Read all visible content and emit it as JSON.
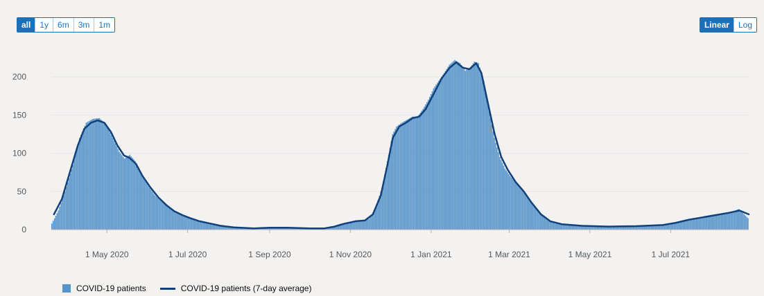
{
  "range_buttons": [
    {
      "label": "all",
      "active": true
    },
    {
      "label": "1y",
      "active": false
    },
    {
      "label": "6m",
      "active": false
    },
    {
      "label": "3m",
      "active": false
    },
    {
      "label": "1m",
      "active": false
    }
  ],
  "scale_buttons": [
    {
      "label": "Linear",
      "active": true
    },
    {
      "label": "Log",
      "active": false
    }
  ],
  "legend": {
    "bars_label": "COVID-19 patients",
    "line_label": "COVID-19 patients (7-day average)"
  },
  "colors": {
    "bars": "#5694ca",
    "line": "#12407a",
    "grid": "#e6e6e6",
    "axis_text": "#505a5f"
  },
  "chart_data": {
    "type": "bar",
    "title": "",
    "xlabel": "",
    "ylabel": "",
    "ylim": [
      0,
      230
    ],
    "yticks": [
      0,
      50,
      100,
      150,
      200
    ],
    "x_ticks": [
      "1 May 2020",
      "1 Jul 2020",
      "1 Sep 2020",
      "1 Nov 2020",
      "1 Jan 2021",
      "1 Mar 2021",
      "1 May 2021",
      "1 Jul 2021"
    ],
    "x_tick_dates": [
      "2020-05-01",
      "2020-07-01",
      "2020-09-01",
      "2020-11-01",
      "2021-01-01",
      "2021-03-01",
      "2021-05-01",
      "2021-07-01"
    ],
    "x_range": [
      "2020-03-20",
      "2021-08-29"
    ],
    "grid": true,
    "legend_position": "bottom-left",
    "series": [
      {
        "name": "COVID-19 patients",
        "kind": "bar",
        "points": [
          [
            "2020-03-20",
            8
          ],
          [
            "2020-03-25",
            25
          ],
          [
            "2020-03-30",
            50
          ],
          [
            "2020-04-05",
            85
          ],
          [
            "2020-04-10",
            120
          ],
          [
            "2020-04-15",
            140
          ],
          [
            "2020-04-20",
            145
          ],
          [
            "2020-04-25",
            146
          ],
          [
            "2020-04-30",
            138
          ],
          [
            "2020-05-05",
            120
          ],
          [
            "2020-05-10",
            102
          ],
          [
            "2020-05-14",
            93
          ],
          [
            "2020-05-18",
            98
          ],
          [
            "2020-05-22",
            90
          ],
          [
            "2020-05-27",
            72
          ],
          [
            "2020-06-01",
            57
          ],
          [
            "2020-06-06",
            45
          ],
          [
            "2020-06-12",
            35
          ],
          [
            "2020-06-17",
            28
          ],
          [
            "2020-06-22",
            22
          ],
          [
            "2020-06-27",
            18
          ],
          [
            "2020-07-01",
            17
          ],
          [
            "2020-07-06",
            14
          ],
          [
            "2020-07-11",
            10
          ],
          [
            "2020-07-16",
            9
          ],
          [
            "2020-07-21",
            8
          ],
          [
            "2020-07-26",
            6
          ],
          [
            "2020-08-01",
            4
          ],
          [
            "2020-08-10",
            2
          ],
          [
            "2020-08-20",
            1.5
          ],
          [
            "2020-08-26",
            2
          ],
          [
            "2020-09-01",
            3
          ],
          [
            "2020-09-10",
            3
          ],
          [
            "2020-09-20",
            2.5
          ],
          [
            "2020-10-01",
            1.5
          ],
          [
            "2020-10-10",
            1
          ],
          [
            "2020-10-15",
            2
          ],
          [
            "2020-10-20",
            5
          ],
          [
            "2020-10-25",
            8
          ],
          [
            "2020-10-31",
            10
          ],
          [
            "2020-11-05",
            12
          ],
          [
            "2020-11-10",
            12
          ],
          [
            "2020-11-15",
            14
          ],
          [
            "2020-11-20",
            28
          ],
          [
            "2020-11-25",
            55
          ],
          [
            "2020-11-30",
            98
          ],
          [
            "2020-12-03",
            125
          ],
          [
            "2020-12-06",
            135
          ],
          [
            "2020-12-10",
            140
          ],
          [
            "2020-12-15",
            145
          ],
          [
            "2020-12-18",
            148
          ],
          [
            "2020-12-22",
            148
          ],
          [
            "2020-12-26",
            158
          ],
          [
            "2020-12-30",
            170
          ],
          [
            "2021-01-03",
            185
          ],
          [
            "2021-01-07",
            195
          ],
          [
            "2021-01-11",
            205
          ],
          [
            "2021-01-15",
            216
          ],
          [
            "2021-01-19",
            222
          ],
          [
            "2021-01-23",
            218
          ],
          [
            "2021-01-27",
            208
          ],
          [
            "2021-01-31",
            213
          ],
          [
            "2021-02-03",
            220
          ],
          [
            "2021-02-06",
            218
          ],
          [
            "2021-02-10",
            195
          ],
          [
            "2021-02-14",
            155
          ],
          [
            "2021-02-18",
            120
          ],
          [
            "2021-02-22",
            95
          ],
          [
            "2021-02-26",
            80
          ],
          [
            "2021-03-02",
            70
          ],
          [
            "2021-03-06",
            62
          ],
          [
            "2021-03-10",
            55
          ],
          [
            "2021-03-15",
            42
          ],
          [
            "2021-03-20",
            30
          ],
          [
            "2021-03-25",
            20
          ],
          [
            "2021-03-30",
            14
          ],
          [
            "2021-04-05",
            8
          ],
          [
            "2021-04-12",
            6
          ],
          [
            "2021-04-20",
            5
          ],
          [
            "2021-05-01",
            5
          ],
          [
            "2021-05-15",
            4
          ],
          [
            "2021-06-01",
            4
          ],
          [
            "2021-06-10",
            5
          ],
          [
            "2021-06-20",
            6
          ],
          [
            "2021-06-30",
            7
          ],
          [
            "2021-07-05",
            9
          ],
          [
            "2021-07-10",
            12
          ],
          [
            "2021-07-15",
            14
          ],
          [
            "2021-07-20",
            14
          ],
          [
            "2021-07-25",
            16
          ],
          [
            "2021-07-30",
            18
          ],
          [
            "2021-08-04",
            19
          ],
          [
            "2021-08-09",
            21
          ],
          [
            "2021-08-14",
            22
          ],
          [
            "2021-08-18",
            24
          ],
          [
            "2021-08-22",
            27
          ],
          [
            "2021-08-25",
            22
          ],
          [
            "2021-08-29",
            15
          ]
        ]
      },
      {
        "name": "COVID-19 patients (7-day average)",
        "kind": "line",
        "points": [
          [
            "2020-03-22",
            20
          ],
          [
            "2020-03-28",
            40
          ],
          [
            "2020-04-03",
            75
          ],
          [
            "2020-04-09",
            110
          ],
          [
            "2020-04-14",
            132
          ],
          [
            "2020-04-19",
            140
          ],
          [
            "2020-04-24",
            143
          ],
          [
            "2020-04-29",
            140
          ],
          [
            "2020-05-04",
            128
          ],
          [
            "2020-05-09",
            110
          ],
          [
            "2020-05-14",
            97
          ],
          [
            "2020-05-18",
            94
          ],
          [
            "2020-05-23",
            86
          ],
          [
            "2020-05-28",
            70
          ],
          [
            "2020-06-03",
            55
          ],
          [
            "2020-06-09",
            42
          ],
          [
            "2020-06-15",
            32
          ],
          [
            "2020-06-21",
            24
          ],
          [
            "2020-06-27",
            19
          ],
          [
            "2020-07-03",
            15
          ],
          [
            "2020-07-10",
            11
          ],
          [
            "2020-07-18",
            8
          ],
          [
            "2020-07-26",
            5
          ],
          [
            "2020-08-05",
            3
          ],
          [
            "2020-08-20",
            1.5
          ],
          [
            "2020-09-01",
            2.5
          ],
          [
            "2020-09-15",
            2.5
          ],
          [
            "2020-10-01",
            1.5
          ],
          [
            "2020-10-12",
            1.5
          ],
          [
            "2020-10-20",
            4
          ],
          [
            "2020-10-28",
            8
          ],
          [
            "2020-11-05",
            11
          ],
          [
            "2020-11-12",
            12
          ],
          [
            "2020-11-18",
            20
          ],
          [
            "2020-11-24",
            45
          ],
          [
            "2020-11-29",
            85
          ],
          [
            "2020-12-03",
            120
          ],
          [
            "2020-12-08",
            135
          ],
          [
            "2020-12-13",
            140
          ],
          [
            "2020-12-18",
            146
          ],
          [
            "2020-12-23",
            148
          ],
          [
            "2020-12-28",
            158
          ],
          [
            "2021-01-03",
            178
          ],
          [
            "2021-01-09",
            198
          ],
          [
            "2021-01-15",
            212
          ],
          [
            "2021-01-20",
            219
          ],
          [
            "2021-01-25",
            212
          ],
          [
            "2021-01-30",
            210
          ],
          [
            "2021-02-04",
            218
          ],
          [
            "2021-02-08",
            205
          ],
          [
            "2021-02-13",
            165
          ],
          [
            "2021-02-18",
            125
          ],
          [
            "2021-02-23",
            95
          ],
          [
            "2021-02-28",
            78
          ],
          [
            "2021-03-06",
            62
          ],
          [
            "2021-03-12",
            50
          ],
          [
            "2021-03-18",
            35
          ],
          [
            "2021-03-25",
            20
          ],
          [
            "2021-04-01",
            11
          ],
          [
            "2021-04-10",
            7
          ],
          [
            "2021-04-25",
            5
          ],
          [
            "2021-05-15",
            4
          ],
          [
            "2021-06-05",
            4.5
          ],
          [
            "2021-06-25",
            6
          ],
          [
            "2021-07-05",
            9
          ],
          [
            "2021-07-15",
            13
          ],
          [
            "2021-07-25",
            16
          ],
          [
            "2021-08-04",
            19
          ],
          [
            "2021-08-14",
            22
          ],
          [
            "2021-08-22",
            25
          ],
          [
            "2021-08-29",
            20
          ]
        ]
      }
    ]
  }
}
